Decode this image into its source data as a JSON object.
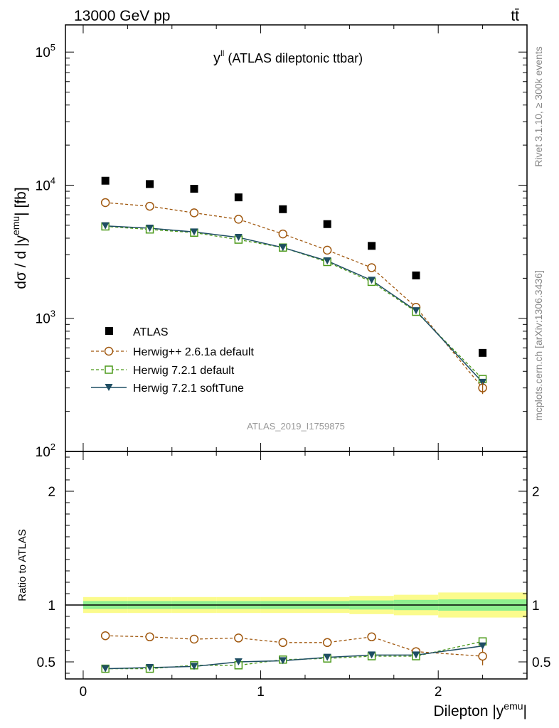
{
  "header": {
    "left": "13000 GeV pp",
    "right": "tt̄"
  },
  "side_labels": {
    "rivet": "Rivet 3.1.10, ≥ 300k events",
    "mcplots": "mcplots.cern.ch [arXiv:1306.3436]"
  },
  "analysis_id": "ATLAS_2019_I1759875",
  "colors": {
    "data": "#000000",
    "herwigpp": "#a0580f",
    "herwig721_default": "#4c9a1a",
    "herwig721_soft": "#1f4e63",
    "band_inner": "#8ff08f",
    "band_outer": "#fbfb8c"
  },
  "chart_data": [
    {
      "type": "scatter",
      "panel": "main",
      "title": "y^ll (ATLAS dileptonic ttbar)",
      "title_parts": {
        "symbol": "y",
        "sup": "ll",
        "text": "(ATLAS dileptonic ttbar)"
      },
      "ylabel": "dσ / d |y^emu| [fb]",
      "ylabel_parts": {
        "pre": "dσ / d |y",
        "sup": "emu",
        "post": "| [fb]"
      },
      "yscale": "log",
      "xlim": [
        -0.1,
        2.5
      ],
      "ylim": [
        100,
        160000
      ],
      "y_ticks": [
        {
          "value": 100,
          "base": "10",
          "exp": "2"
        },
        {
          "value": 1000,
          "base": "10",
          "exp": "3"
        },
        {
          "value": 10000,
          "base": "10",
          "exp": "4"
        },
        {
          "value": 100000,
          "base": "10",
          "exp": "5"
        }
      ],
      "x": [
        0.125,
        0.375,
        0.625,
        0.875,
        1.125,
        1.375,
        1.625,
        1.875,
        2.25
      ],
      "series": [
        {
          "name": "ATLAS",
          "style": "data",
          "values": [
            10800,
            10200,
            9400,
            8100,
            6600,
            5100,
            3500,
            2100,
            550
          ]
        },
        {
          "name": "Herwig++ 2.6.1a default",
          "style": "herwigpp",
          "values": [
            7400,
            6950,
            6200,
            5550,
            4300,
            3250,
            2400,
            1210,
            300
          ]
        },
        {
          "name": "Herwig 7.2.1 default",
          "style": "herwig721_default",
          "values": [
            4900,
            4650,
            4400,
            3900,
            3400,
            2650,
            1880,
            1120,
            350
          ]
        },
        {
          "name": "Herwig 7.2.1 softTune",
          "style": "herwig721_soft",
          "values": [
            4950,
            4750,
            4450,
            4050,
            3400,
            2700,
            1930,
            1140,
            330
          ]
        }
      ],
      "legend_position": "bottom-left"
    },
    {
      "type": "line",
      "panel": "ratio",
      "xlabel": "Dilepton |y^emu|",
      "xlabel_parts": {
        "pre": "Dilepton |y",
        "sup": "emu",
        "post": "|"
      },
      "ylabel": "Ratio to ATLAS",
      "xlim": [
        -0.1,
        2.5
      ],
      "ylim": [
        0.35,
        2.35
      ],
      "x_ticks": [
        "0",
        "1",
        "2"
      ],
      "y_ticks": [
        "0.5",
        "1",
        "2"
      ],
      "bins": [
        [
          0,
          0.25
        ],
        [
          0.25,
          0.5
        ],
        [
          0.5,
          0.75
        ],
        [
          0.75,
          1.0
        ],
        [
          1.0,
          1.25
        ],
        [
          1.25,
          1.5
        ],
        [
          1.5,
          1.75
        ],
        [
          1.75,
          2.0
        ],
        [
          2.0,
          2.5
        ]
      ],
      "band_inner": [
        0.035,
        0.035,
        0.035,
        0.035,
        0.035,
        0.035,
        0.04,
        0.045,
        0.05
      ],
      "band_outer": [
        0.07,
        0.07,
        0.07,
        0.07,
        0.07,
        0.07,
        0.08,
        0.09,
        0.11
      ],
      "x": [
        0.125,
        0.375,
        0.625,
        0.875,
        1.125,
        1.375,
        1.625,
        1.875,
        2.25
      ],
      "series": [
        {
          "name": "Herwig++ 2.6.1a default",
          "style": "herwigpp",
          "values": [
            0.73,
            0.72,
            0.7,
            0.71,
            0.67,
            0.67,
            0.72,
            0.59,
            0.55
          ],
          "errors": [
            0.01,
            0.01,
            0.015,
            0.02,
            0.02,
            0.025,
            0.03,
            0.03,
            0.08
          ]
        },
        {
          "name": "Herwig 7.2.1 default",
          "style": "herwig721_default",
          "values": [
            0.44,
            0.44,
            0.47,
            0.47,
            0.52,
            0.53,
            0.55,
            0.55,
            0.68
          ]
        },
        {
          "name": "Herwig 7.2.1 softTune",
          "style": "herwig721_soft",
          "values": [
            0.44,
            0.45,
            0.46,
            0.5,
            0.51,
            0.54,
            0.56,
            0.56,
            0.64
          ]
        }
      ]
    }
  ]
}
